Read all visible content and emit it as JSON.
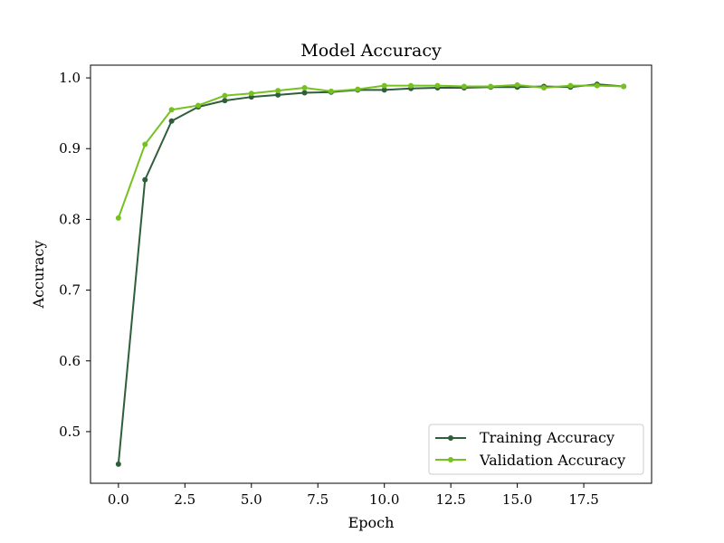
{
  "chart_data": {
    "type": "line",
    "title": "Model Accuracy",
    "xlabel": "Epoch",
    "ylabel": "Accuracy",
    "xlim": [
      -1.05,
      20.05
    ],
    "ylim": [
      0.427,
      1.018
    ],
    "xticks": [
      0.0,
      2.5,
      5.0,
      7.5,
      10.0,
      12.5,
      15.0,
      17.5
    ],
    "xtick_labels": [
      "0.0",
      "2.5",
      "5.0",
      "7.5",
      "10.0",
      "12.5",
      "15.0",
      "17.5"
    ],
    "yticks": [
      0.5,
      0.6,
      0.7,
      0.8,
      0.9,
      1.0
    ],
    "ytick_labels": [
      "0.5",
      "0.6",
      "0.7",
      "0.8",
      "0.9",
      "1.0"
    ],
    "grid": false,
    "legend_position": "lower-right",
    "x": [
      0,
      1,
      2,
      3,
      4,
      5,
      6,
      7,
      8,
      9,
      10,
      11,
      12,
      13,
      14,
      15,
      16,
      17,
      18,
      19
    ],
    "series": [
      {
        "name": "Training Accuracy",
        "color": "#2e5e3a",
        "values": [
          0.454,
          0.856,
          0.939,
          0.959,
          0.968,
          0.973,
          0.976,
          0.979,
          0.98,
          0.983,
          0.983,
          0.985,
          0.986,
          0.986,
          0.987,
          0.987,
          0.988,
          0.987,
          0.991,
          0.988
        ]
      },
      {
        "name": "Validation Accuracy",
        "color": "#76c11f",
        "values": [
          0.802,
          0.906,
          0.955,
          0.961,
          0.975,
          0.978,
          0.982,
          0.986,
          0.981,
          0.984,
          0.989,
          0.989,
          0.989,
          0.988,
          0.988,
          0.99,
          0.986,
          0.989,
          0.989,
          0.988
        ]
      }
    ]
  }
}
